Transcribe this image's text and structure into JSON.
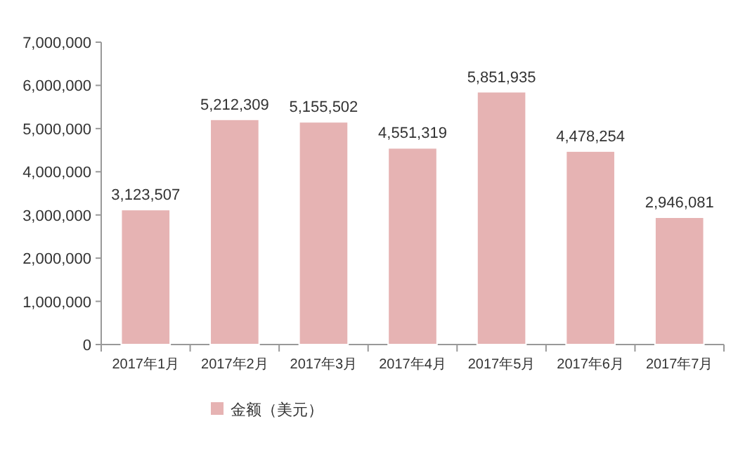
{
  "chart_data": {
    "type": "bar",
    "categories": [
      "2017年1月",
      "2017年2月",
      "2017年3月",
      "2017年4月",
      "2017年5月",
      "2017年6月",
      "2017年7月"
    ],
    "series": [
      {
        "name": "金额（美元）",
        "color": "#e6b3b3",
        "values": [
          3123507,
          5212309,
          5155502,
          4551319,
          5851935,
          4478254,
          2946081
        ],
        "value_labels": [
          "3,123,507",
          "5,212,309",
          "5,155,502",
          "4,551,319",
          "5,851,935",
          "4,478,254",
          "2,946,081"
        ]
      }
    ],
    "ylim": [
      0,
      7000000
    ],
    "yticks": [
      0,
      {
        "value": 1000000,
        "label": "1,000,000"
      },
      {
        "value": 2000000,
        "label": "2,000,000"
      },
      {
        "value": 3000000,
        "label": "3,000,000"
      },
      {
        "value": 4000000,
        "label": "4,000,000"
      },
      {
        "value": 5000000,
        "label": "5,000,000"
      },
      {
        "value": 6000000,
        "label": "6,000,000"
      },
      {
        "value": 7000000,
        "label": "7,000,000"
      }
    ],
    "grid": false,
    "legend": "bottom left"
  }
}
